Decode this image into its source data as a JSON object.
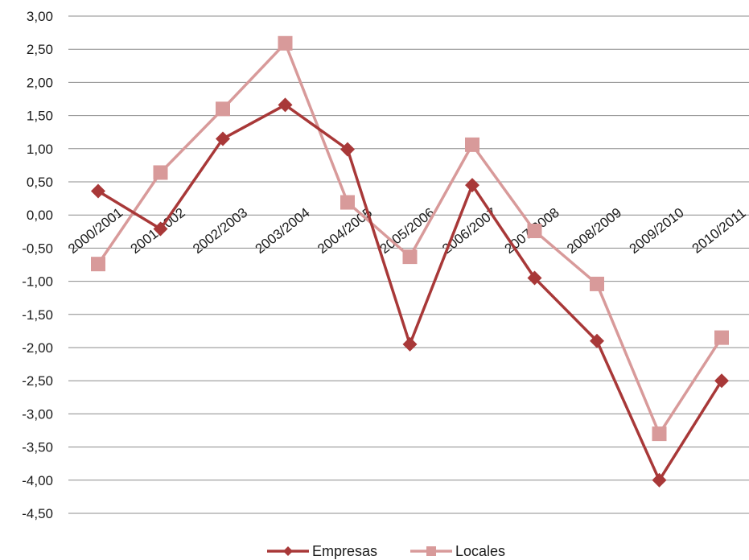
{
  "chart_data": {
    "type": "line",
    "categories": [
      "2000/2001",
      "2001/2002",
      "2002/2003",
      "2003/2004",
      "2004/2005",
      "2005/2006",
      "2006/2007",
      "2007/2008",
      "2008/2009",
      "2009/2010",
      "2010/2011"
    ],
    "series": [
      {
        "name": "Empresas",
        "color": "#a83838",
        "marker": "diamond",
        "values": [
          0.36,
          -0.21,
          1.15,
          1.66,
          0.99,
          -1.95,
          0.45,
          -0.95,
          -1.9,
          -4.0,
          -2.5
        ]
      },
      {
        "name": "Locales",
        "color": "#d89a9a",
        "marker": "square",
        "values": [
          -0.74,
          0.64,
          1.6,
          2.59,
          0.19,
          -0.63,
          1.06,
          -0.24,
          -1.04,
          -3.3,
          -1.85
        ]
      }
    ],
    "ylim": [
      -4.5,
      3.0
    ],
    "yticks": [
      "3,00",
      "2,50",
      "2,00",
      "1,50",
      "1,00",
      "0,50",
      "0,00",
      "-0,50",
      "-1,00",
      "-1,50",
      "-2,00",
      "-2,50",
      "-3,00",
      "-3,50",
      "-4,00",
      "-4,50"
    ],
    "grid": true,
    "legend_position": "bottom"
  }
}
